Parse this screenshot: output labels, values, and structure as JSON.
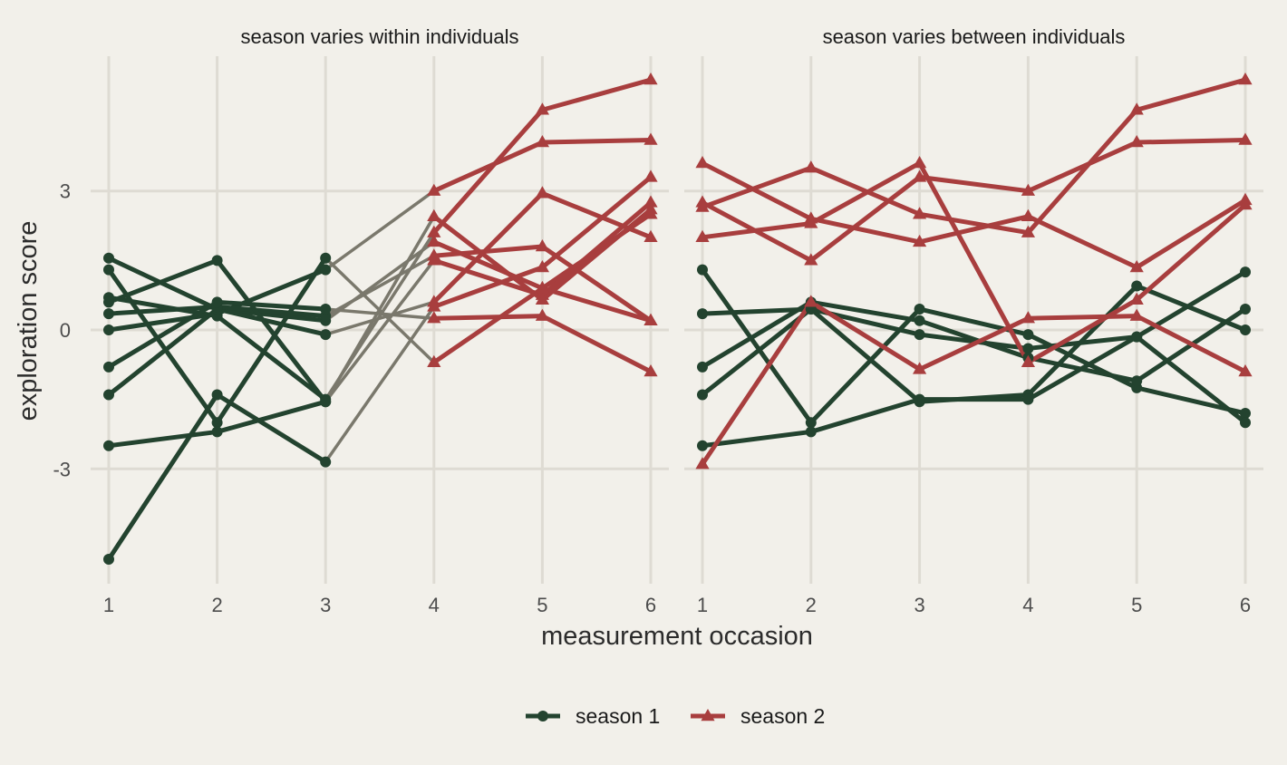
{
  "chart_data": {
    "type": "line",
    "xlabel": "measurement occasion",
    "ylabel": "exploration score",
    "xlim": [
      0.9,
      6.1
    ],
    "ylim": [
      -5.5,
      5.8
    ],
    "x_ticks": [
      1,
      2,
      3,
      4,
      5,
      6
    ],
    "y_ticks": [
      {
        "v": 3,
        "label": "3"
      },
      {
        "v": 0,
        "label": "0"
      },
      {
        "v": -3,
        "label": "-3"
      }
    ],
    "grid": true,
    "colors": {
      "season 1": "#23432f",
      "season 2": "#a83e3e",
      "transition": "#7a786c",
      "grid": "#dedbd3"
    },
    "legend": {
      "position": "bottom",
      "entries": [
        {
          "label": "season 1",
          "marker": "circle",
          "color": "#23432f"
        },
        {
          "label": "season 2",
          "marker": "triangle",
          "color": "#a83e3e"
        }
      ]
    },
    "panels": [
      {
        "title": "season varies within individuals",
        "individuals": [
          {
            "seasons": [
              1,
              1,
              1,
              2,
              2,
              2
            ],
            "y": [
              1.3,
              -2.0,
              1.55,
              -0.7,
              0.9,
              0.2
            ]
          },
          {
            "seasons": [
              1,
              1,
              1,
              2,
              2,
              2
            ],
            "y": [
              0.7,
              0.3,
              -1.5,
              2.1,
              4.75,
              5.4
            ]
          },
          {
            "seasons": [
              1,
              1,
              1,
              2,
              2,
              2
            ],
            "y": [
              1.55,
              0.45,
              0.2,
              1.9,
              0.9,
              2.5
            ]
          },
          {
            "seasons": [
              1,
              1,
              1,
              2,
              2,
              2
            ],
            "y": [
              0.0,
              0.35,
              1.3,
              3.0,
              4.05,
              4.1
            ]
          },
          {
            "seasons": [
              1,
              1,
              1,
              2,
              2,
              2
            ],
            "y": [
              -1.4,
              0.45,
              -0.1,
              0.6,
              2.95,
              2.0
            ]
          },
          {
            "seasons": [
              1,
              1,
              1,
              2,
              2,
              2
            ],
            "y": [
              0.35,
              0.5,
              0.3,
              1.6,
              1.8,
              0.2
            ]
          },
          {
            "seasons": [
              1,
              1,
              1,
              2,
              2,
              2
            ],
            "y": [
              -0.8,
              0.6,
              0.45,
              0.25,
              0.3,
              -0.9
            ]
          },
          {
            "seasons": [
              1,
              1,
              1,
              2,
              2,
              2
            ],
            "y": [
              -2.5,
              -2.2,
              -1.55,
              1.5,
              0.75,
              2.75
            ]
          },
          {
            "seasons": [
              1,
              1,
              1,
              2,
              2,
              2
            ],
            "y": [
              -4.95,
              -1.4,
              -2.85,
              0.5,
              1.35,
              3.3
            ]
          },
          {
            "seasons": [
              1,
              1,
              1,
              2,
              2,
              2
            ],
            "y": [
              0.6,
              1.5,
              -1.55,
              2.45,
              0.65,
              2.6
            ]
          }
        ]
      },
      {
        "title": "season varies between individuals",
        "individuals": [
          {
            "seasons": [
              1,
              1,
              1,
              1,
              1,
              1
            ],
            "y": [
              1.3,
              -2.0,
              0.45,
              -0.1,
              -1.25,
              -1.8
            ]
          },
          {
            "seasons": [
              1,
              1,
              1,
              1,
              1,
              1
            ],
            "y": [
              0.35,
              0.45,
              -0.1,
              -0.4,
              -0.15,
              1.25
            ]
          },
          {
            "seasons": [
              1,
              1,
              1,
              1,
              1,
              1
            ],
            "y": [
              -0.8,
              0.6,
              0.2,
              -0.6,
              -1.1,
              0.45
            ]
          },
          {
            "seasons": [
              1,
              1,
              1,
              1,
              1,
              1
            ],
            "y": [
              -1.4,
              0.45,
              -1.55,
              -1.4,
              0.95,
              0.0
            ]
          },
          {
            "seasons": [
              1,
              1,
              1,
              1,
              1,
              1
            ],
            "y": [
              -2.5,
              -2.2,
              -1.5,
              -1.5,
              -0.15,
              -2.0
            ]
          },
          {
            "seasons": [
              2,
              2,
              2,
              2,
              2,
              2
            ],
            "y": [
              3.6,
              2.4,
              1.9,
              2.45,
              1.35,
              2.8
            ]
          },
          {
            "seasons": [
              2,
              2,
              2,
              2,
              2,
              2
            ],
            "y": [
              2.65,
              3.5,
              2.5,
              2.1,
              4.75,
              5.4
            ]
          },
          {
            "seasons": [
              2,
              2,
              2,
              2,
              2,
              2
            ],
            "y": [
              2.0,
              2.3,
              3.6,
              -0.7,
              0.65,
              2.7
            ]
          },
          {
            "seasons": [
              2,
              2,
              2,
              2,
              2,
              2
            ],
            "y": [
              2.75,
              1.5,
              3.3,
              3.0,
              4.05,
              4.1
            ]
          },
          {
            "seasons": [
              2,
              2,
              2,
              2,
              2,
              2
            ],
            "y": [
              -2.9,
              0.6,
              -0.85,
              0.25,
              0.3,
              -0.9
            ]
          }
        ]
      }
    ]
  }
}
